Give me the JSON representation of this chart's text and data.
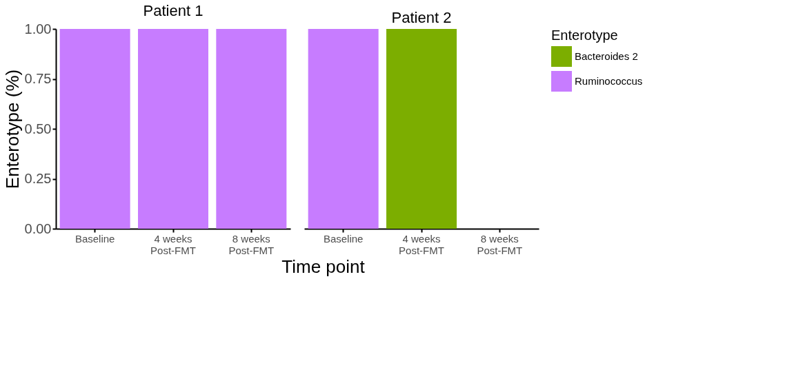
{
  "chart_data": [
    {
      "type": "bar",
      "title": "Patient 1",
      "ylabel": "Enterotype (%)",
      "xlabel": "Time point",
      "categories": [
        "Baseline",
        "4 weeks\nPost-FMT",
        "8 weeks\nPost-FMT"
      ],
      "ylim": [
        0,
        1
      ],
      "yticks": [
        {
          "value": 0,
          "label": "0.00"
        },
        {
          "value": 0.25,
          "label": "0.25"
        },
        {
          "value": 0.5,
          "label": "0.50"
        },
        {
          "value": 0.75,
          "label": "0.75"
        },
        {
          "value": 1,
          "label": "1.00"
        }
      ],
      "series": [
        {
          "color": "#7cae00",
          "values": [
            null,
            null,
            null
          ]
        },
        {
          "color": "#c77cff",
          "values": [
            1,
            1,
            1
          ]
        }
      ]
    },
    {
      "type": "bar",
      "title": "Patient 2",
      "categories": [
        "Baseline",
        "4 weeks\nPost-FMT",
        "8 weeks\nPost-FMT"
      ],
      "ylim": [
        0,
        1
      ],
      "tick_labels": "x",
      "legend": "right",
      "legend_title": "Enterotype",
      "series": [
        {
          "name": "Bacteroides 2",
          "color": "#7cae00",
          "values": [
            null,
            1,
            null
          ]
        },
        {
          "name": "Ruminococcus",
          "color": "#c77cff",
          "values": [
            1,
            null,
            null
          ]
        }
      ]
    }
  ]
}
